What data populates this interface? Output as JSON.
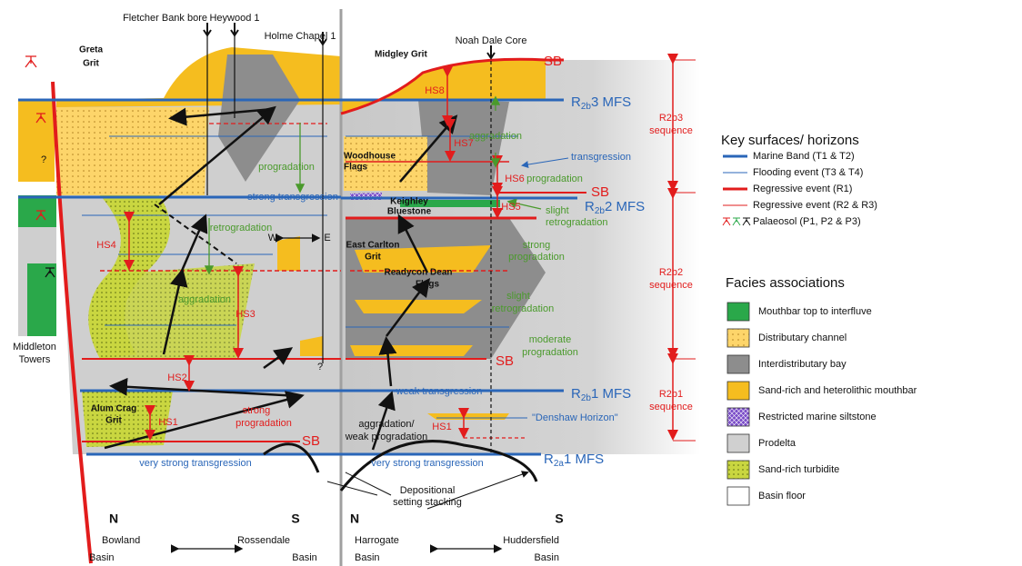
{
  "wells": [
    "Fletcher Bank bore",
    "Heywood 1",
    "Holme Chapel 1",
    "Noah Dale Core"
  ],
  "left_panel": {
    "labels": [
      "Greta",
      "Grit",
      "?",
      "?",
      "Middleton",
      "Towers",
      "Alum Crag",
      "Grit",
      "HS1",
      "HS2",
      "HS3",
      "HS4",
      "aggradation",
      "retrogradation",
      "progradation",
      "strong transgression",
      "W",
      "E",
      "strong",
      "progradation",
      "SB",
      "very strong transgression",
      "N",
      "S",
      "Bowland",
      "Basin",
      "Rossendale",
      "Basin"
    ]
  },
  "right_panel": {
    "labels": [
      "Midgley Grit",
      "SB",
      "HS8",
      "aggradation",
      "HS7",
      "transgression",
      "Woodhouse",
      "Flags",
      "HS6",
      "progradation",
      "SB",
      "Keighley",
      "Bluestone",
      "HS5",
      "slight",
      "retrogradation",
      "East Carlton",
      "Grit",
      "strong",
      "progradation",
      "Readycon Dean",
      "Flags",
      "slight",
      "retrogradation",
      "moderate",
      "progradation",
      "SB",
      "weak transgression",
      "aggradation/",
      "weak progradation",
      "HS1",
      "\"Denshaw Horizon\"",
      "very strong transgression",
      "Depositional",
      "setting stacking",
      "N",
      "S",
      "Harrogate",
      "Basin",
      "Huddersfield",
      "Basin"
    ]
  },
  "surfaces": [
    {
      "base": "R",
      "sub": "2b",
      "rest": "3 MFS"
    },
    {
      "base": "R",
      "sub": "2b",
      "rest": "2 MFS"
    },
    {
      "base": "R",
      "sub": "2b",
      "rest": "1 MFS"
    },
    {
      "base": "R",
      "sub": "2a",
      "rest": "1 MFS"
    }
  ],
  "sequences": [
    [
      "R2b3",
      "sequence"
    ],
    [
      "R2b2",
      "sequence"
    ],
    [
      "R2b1",
      "sequence"
    ]
  ],
  "legend": {
    "key_title": "Key surfaces/ horizons",
    "key_items": [
      "Marine Band (T1 & T2)",
      "Flooding event (T3 & T4)",
      "Regressive event (R1)",
      "Regressive event (R2 & R3)",
      "Palaeosol (P1, P2 & P3)"
    ],
    "facies_title": "Facies associations",
    "facies_items": [
      "Mouthbar top to interfluve",
      "Distributary channel",
      "Interdistributary bay",
      "Sand-rich and heterolithic mouthbar",
      "Restricted marine siltstone",
      "Prodelta",
      "Sand-rich turbidite",
      "Basin floor"
    ]
  }
}
